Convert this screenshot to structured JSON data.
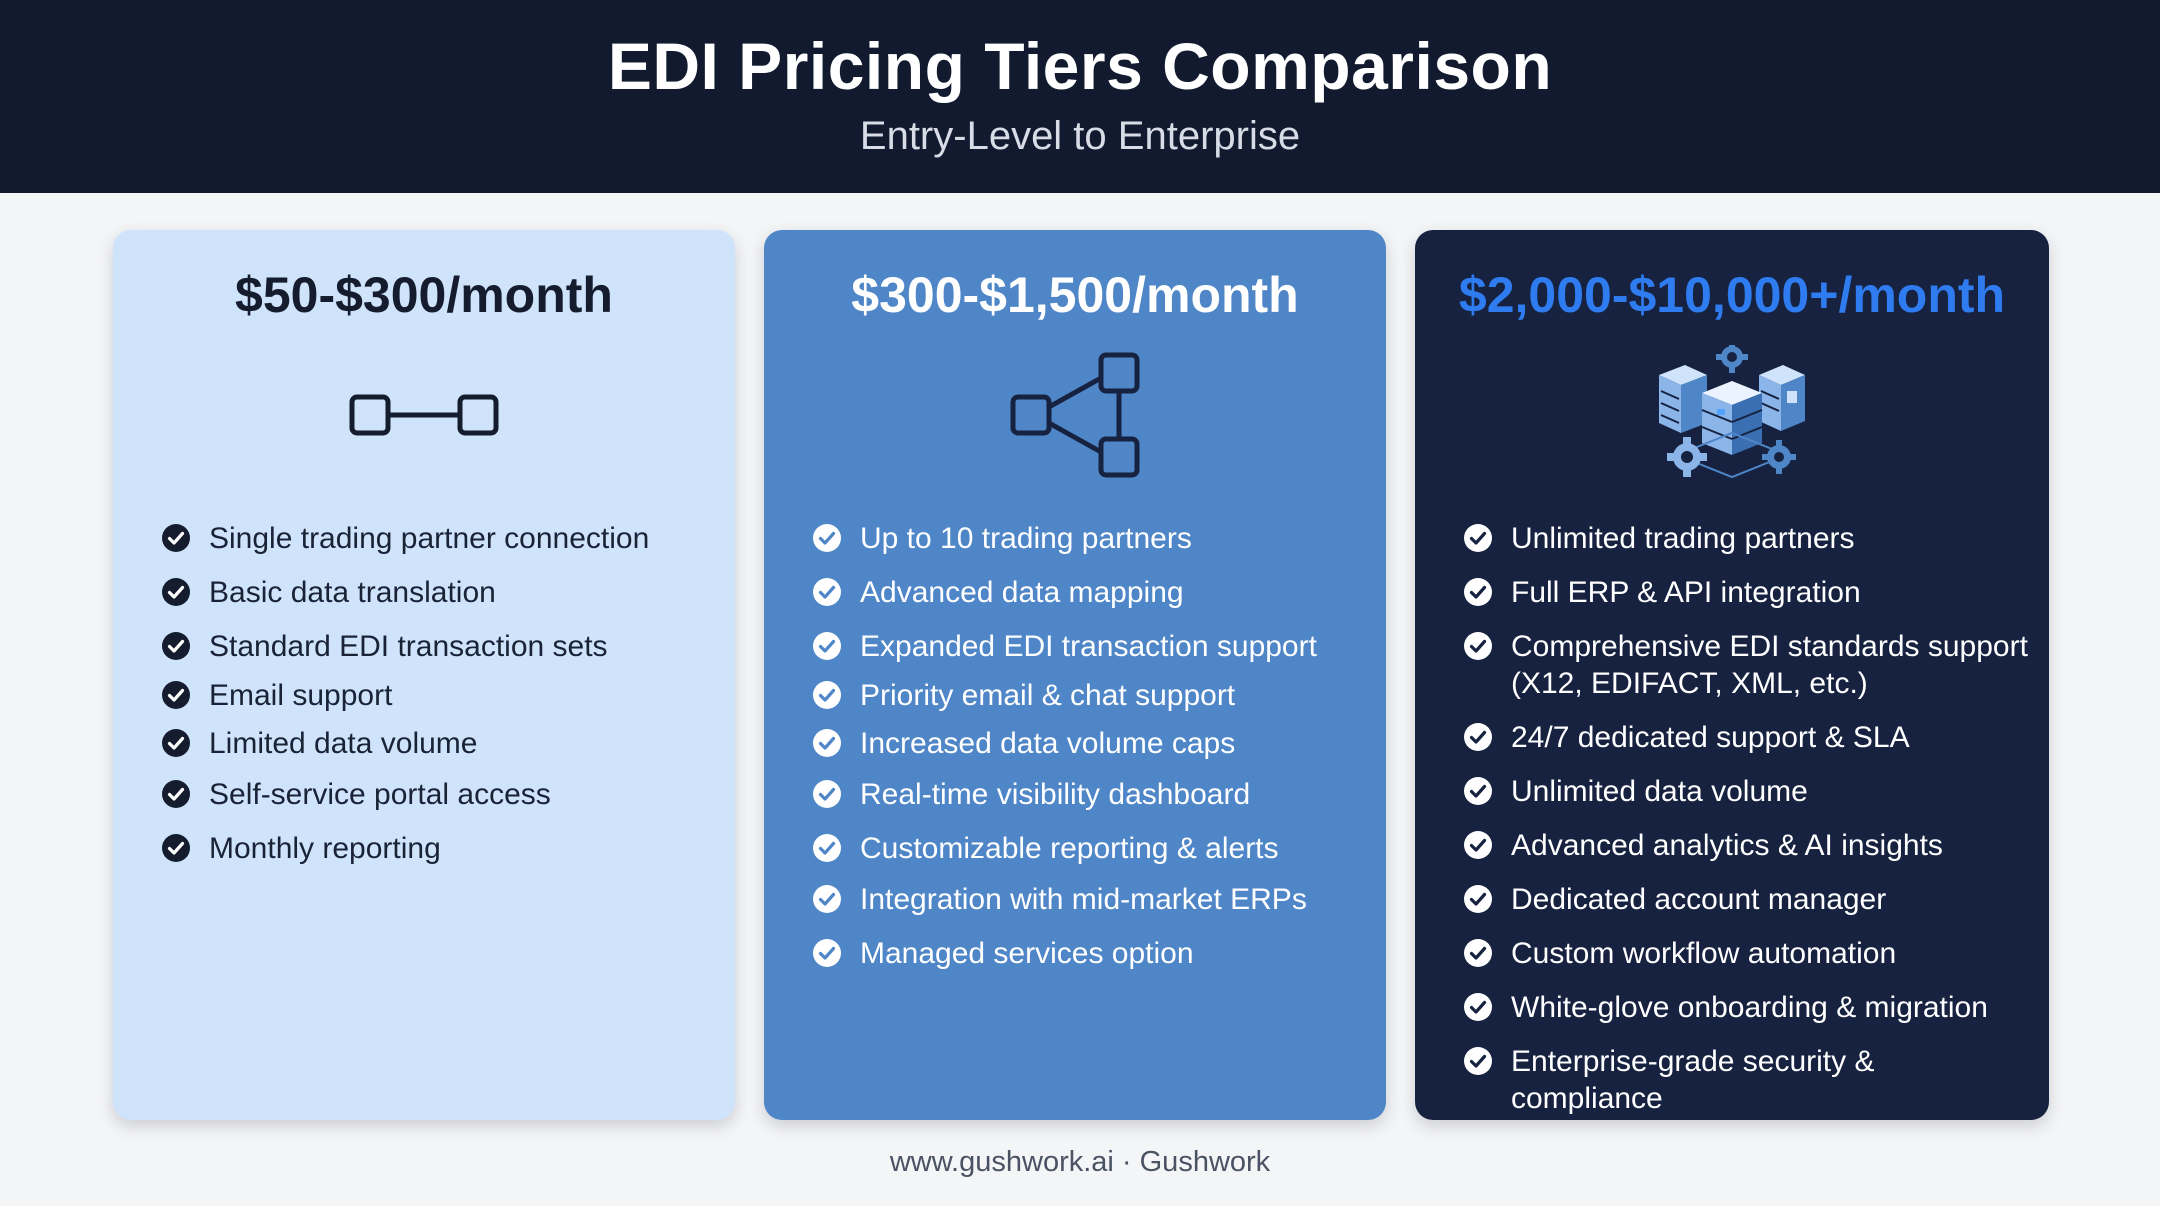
{
  "header": {
    "title": "EDI Pricing Tiers Comparison",
    "subtitle": "Entry-Level to Enterprise"
  },
  "tiers": [
    {
      "price": "$50-$300/month",
      "icon": "point-to-point-connection-icon",
      "features": [
        "Single trading partner connection",
        "Basic data translation",
        "Standard EDI transaction sets",
        "Email support",
        "Limited data volume",
        "Self-service portal access",
        "Monthly reporting"
      ]
    },
    {
      "price": "$300-$1,500/month",
      "icon": "network-branch-icon",
      "features": [
        "Up to 10 trading partners",
        "Advanced data mapping",
        "Expanded EDI transaction support",
        "Priority email & chat support",
        "Increased data volume caps",
        "Real-time visibility dashboard",
        "Customizable reporting & alerts",
        "Integration with mid-market ERPs",
        "Managed services option"
      ]
    },
    {
      "price": "$2,000-$10,000+/month",
      "icon": "server-gears-icon",
      "features": [
        "Unlimited trading partners",
        "Full ERP & API integration",
        "Comprehensive EDI standards support",
        "(X12, EDIFACT, XML, etc.)",
        "24/7 dedicated support & SLA",
        "Unlimited data volume",
        "Advanced analytics & AI insights",
        "Dedicated account manager",
        "Custom workflow automation",
        "White-glove onboarding & migration",
        "Enterprise-grade security & compliance"
      ]
    }
  ],
  "footer": {
    "text": "www.gushwork.ai · Gushwork"
  },
  "colors": {
    "header_bg": "#111a2e",
    "tier1_bg": "#cfe3fb",
    "tier2_bg": "#4f86c8",
    "tier3_bg": "#16223f",
    "tier3_price": "#2f7cf0"
  }
}
